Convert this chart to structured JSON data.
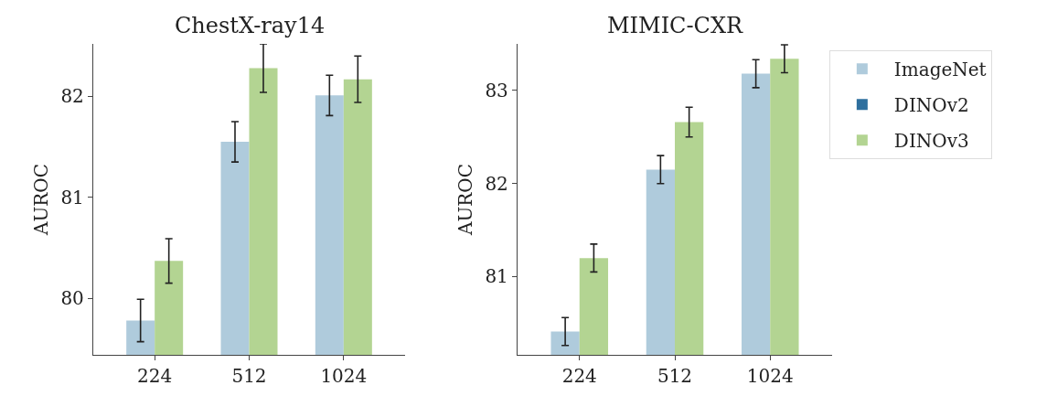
{
  "chart_data": [
    {
      "type": "bar",
      "title": "ChestX-ray14",
      "ylabel": "AUROC",
      "categories": [
        "224",
        "512",
        "1024"
      ],
      "ylim": [
        79.44,
        82.52
      ],
      "yticks": [
        80,
        81,
        82
      ],
      "series": [
        {
          "color": "#afcbdc",
          "values": [
            79.78,
            81.55,
            82.01
          ],
          "errors": [
            0.21,
            0.2,
            0.2
          ]
        },
        {
          "color": "#b3d492",
          "values": [
            80.37,
            82.28,
            82.17
          ],
          "errors": [
            0.22,
            0.24,
            0.23
          ]
        }
      ]
    },
    {
      "type": "bar",
      "title": "MIMIC-CXR",
      "ylabel": "AUROC",
      "categories": [
        "224",
        "512",
        "1024"
      ],
      "ylim": [
        80.16,
        83.5
      ],
      "yticks": [
        81,
        82,
        83
      ],
      "legend": "right",
      "series": [
        {
          "name": "ImageNet",
          "color": "#afcbdc",
          "values": [
            80.41,
            82.15,
            83.18
          ],
          "errors": [
            0.15,
            0.15,
            0.15
          ]
        },
        {
          "name": "DINOv2",
          "color": "#2e6f9e",
          "values": [
            null,
            null,
            null
          ]
        },
        {
          "name": "DINOv3",
          "color": "#b3d492",
          "values": [
            81.2,
            82.66,
            83.34
          ],
          "errors": [
            0.15,
            0.16,
            0.15
          ]
        }
      ]
    }
  ]
}
